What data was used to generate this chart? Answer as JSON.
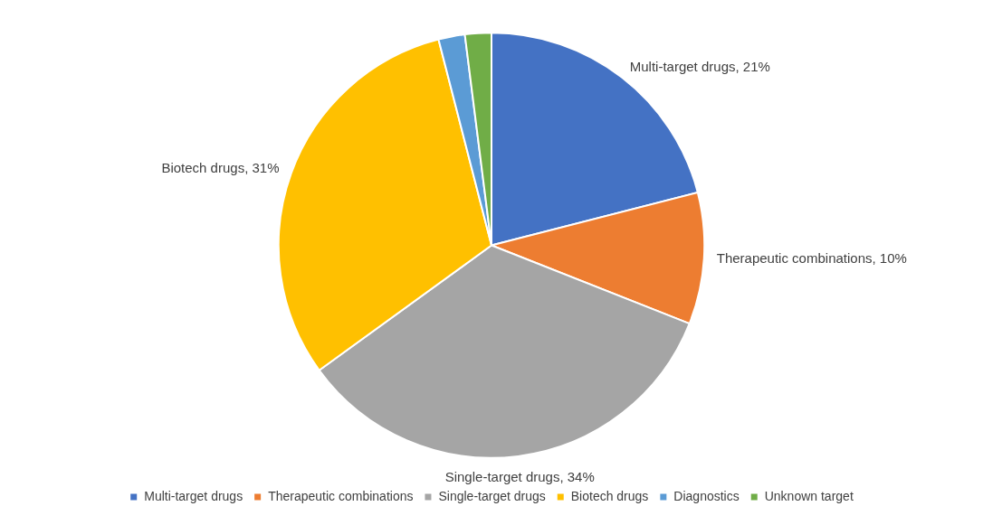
{
  "chart_data": {
    "type": "pie",
    "categories": [
      "Multi-target drugs",
      "Therapeutic combinations",
      "Single-target drugs",
      "Biotech drugs",
      "Diagnostics",
      "Unknown target"
    ],
    "values": [
      21,
      10,
      34,
      31,
      2,
      2
    ],
    "colors": [
      "#4472c4",
      "#ed7d31",
      "#a5a5a5",
      "#ffc000",
      "#5b9bd5",
      "#70ad47"
    ],
    "value_labels": [
      "Multi-target drugs, 21%",
      "Therapeutic combinations, 10%",
      "Single-target drugs, 34%",
      "Biotech drugs, 31%",
      null,
      null
    ],
    "legend": "bottom"
  }
}
